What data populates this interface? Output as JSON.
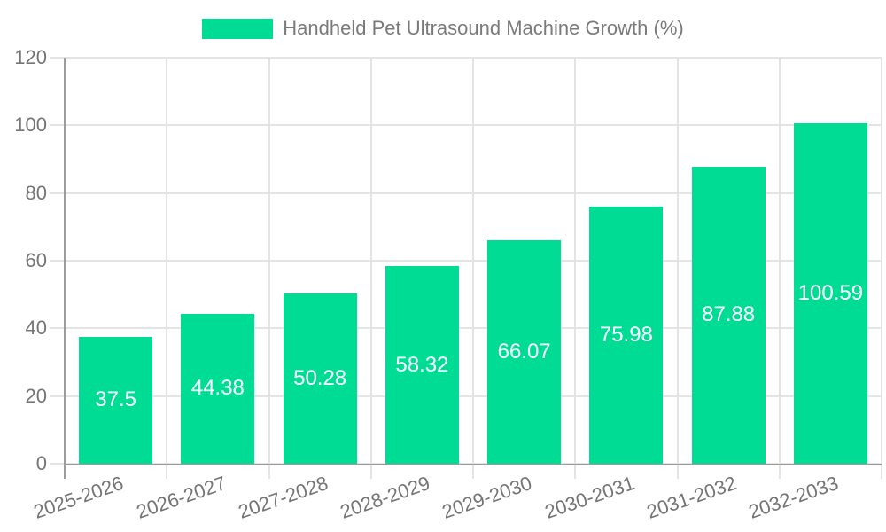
{
  "chart_data": {
    "type": "bar",
    "title": "Handheld Pet Ultrasound Machine Growth (%)",
    "legend": {
      "position": "top",
      "label": "Handheld Pet Ultrasound Machine Growth (%)"
    },
    "categories": [
      "2025-2026",
      "2026-2027",
      "2027-2028",
      "2028-2029",
      "2029-2030",
      "2030-2031",
      "2031-2032",
      "2032-2033"
    ],
    "values": [
      37.5,
      44.38,
      50.28,
      58.32,
      66.07,
      75.98,
      87.88,
      100.59
    ],
    "value_labels": [
      "37.5",
      "44.38",
      "50.28",
      "58.32",
      "66.07",
      "75.98",
      "87.88",
      "100.59"
    ],
    "xlabel": "",
    "ylabel": "",
    "ylim": [
      0,
      120
    ],
    "yticks": [
      0,
      20,
      40,
      60,
      80,
      100,
      120
    ],
    "ytick_labels": [
      "0",
      "20",
      "40",
      "60",
      "80",
      "100",
      "120"
    ],
    "grid": true,
    "gridline_orientation": "both",
    "bar_label_position": "inside-center"
  },
  "colors": {
    "bar": "#00dc94",
    "grid": "#e4e4e4",
    "axis": "#9c9c9c",
    "tick_text": "#757575",
    "legend_text": "#7a7a7a",
    "value_text": "#ffffff",
    "background": "#ffffff"
  }
}
